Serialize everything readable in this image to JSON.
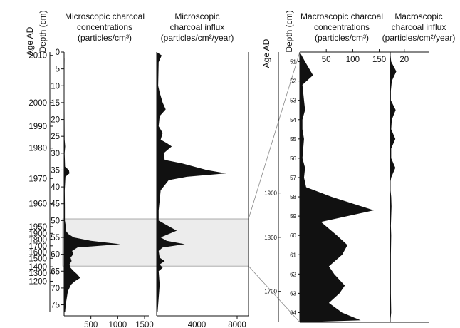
{
  "chart_data": [
    {
      "type": "area",
      "panel": "microscopic-concentration",
      "title_lines": [
        "Microscopic charcoal",
        "concentrations",
        "(particles/cm³)"
      ],
      "xlim": [
        0,
        1500
      ],
      "xticks": [
        "500",
        "1000",
        "1500"
      ],
      "depth_ylim": [
        0,
        77
      ],
      "depth_ticks": [
        "0",
        "5",
        "10",
        "15",
        "20",
        "25",
        "30",
        "35",
        "40",
        "45",
        "50",
        "55",
        "60",
        "65",
        "70",
        "75"
      ],
      "age_labels": [
        {
          "label": "2010",
          "depth": 1
        },
        {
          "label": "2000",
          "depth": 15
        },
        {
          "label": "1990",
          "depth": 22
        },
        {
          "label": "1980",
          "depth": 28.5
        },
        {
          "label": "1970",
          "depth": 37.5
        },
        {
          "label": "1960",
          "depth": 45
        },
        {
          "label": "1950",
          "depth": 51.8
        },
        {
          "label": "1900",
          "depth": 53.8
        },
        {
          "label": "1800",
          "depth": 55.6
        },
        {
          "label": "1700",
          "depth": 57.5
        },
        {
          "label": "1600",
          "depth": 59.3
        },
        {
          "label": "1500",
          "depth": 61.2
        },
        {
          "label": "1400",
          "depth": 63.7
        },
        {
          "label": "1300",
          "depth": 65.6
        },
        {
          "label": "1200",
          "depth": 68.0
        }
      ],
      "profile": [
        [
          0,
          0
        ],
        [
          2,
          8
        ],
        [
          8,
          5
        ],
        [
          14,
          6
        ],
        [
          20,
          8
        ],
        [
          26,
          10
        ],
        [
          28,
          20
        ],
        [
          30,
          10
        ],
        [
          34,
          18
        ],
        [
          35,
          90
        ],
        [
          36,
          100
        ],
        [
          37,
          25
        ],
        [
          41,
          12
        ],
        [
          46,
          15
        ],
        [
          50,
          15
        ],
        [
          52,
          35
        ],
        [
          53,
          30
        ],
        [
          54,
          80
        ],
        [
          55,
          180
        ],
        [
          56,
          500
        ],
        [
          57,
          1050
        ],
        [
          58,
          250
        ],
        [
          59,
          150
        ],
        [
          60,
          170
        ],
        [
          61,
          120
        ],
        [
          62,
          140
        ],
        [
          63,
          100
        ],
        [
          64,
          120
        ],
        [
          65,
          180
        ],
        [
          66,
          250
        ],
        [
          67,
          300
        ],
        [
          68,
          200
        ],
        [
          69,
          130
        ],
        [
          71,
          70
        ],
        [
          73,
          50
        ],
        [
          75,
          30
        ],
        [
          77,
          20
        ]
      ],
      "highlight_depth": [
        49.5,
        63.5
      ]
    },
    {
      "type": "area",
      "panel": "microscopic-influx",
      "title_lines": [
        "Microscopic",
        "charcoal influx",
        "(particles/cm²/year)"
      ],
      "xlim": [
        0,
        8000
      ],
      "xticks": [
        "4000",
        "8000"
      ],
      "profile": [
        [
          0,
          0
        ],
        [
          1,
          500
        ],
        [
          3,
          200
        ],
        [
          10,
          150
        ],
        [
          12,
          300
        ],
        [
          15,
          600
        ],
        [
          17,
          900
        ],
        [
          19,
          300
        ],
        [
          22,
          200
        ],
        [
          24,
          600
        ],
        [
          26,
          400
        ],
        [
          27,
          1000
        ],
        [
          28,
          1500
        ],
        [
          30,
          700
        ],
        [
          32,
          800
        ],
        [
          33,
          2500
        ],
        [
          35,
          5000
        ],
        [
          36,
          6900
        ],
        [
          37,
          3000
        ],
        [
          38,
          1200
        ],
        [
          41,
          400
        ],
        [
          44,
          300
        ],
        [
          47,
          200
        ],
        [
          50,
          200
        ],
        [
          51,
          800
        ],
        [
          52,
          1400
        ],
        [
          53,
          2000
        ],
        [
          54,
          1200
        ],
        [
          55,
          400
        ],
        [
          56,
          1000
        ],
        [
          57,
          2800
        ],
        [
          58,
          600
        ],
        [
          59,
          200
        ],
        [
          61,
          300
        ],
        [
          62,
          800
        ],
        [
          63,
          300
        ],
        [
          64,
          600
        ],
        [
          65,
          200
        ],
        [
          69,
          300
        ],
        [
          77,
          100
        ]
      ]
    },
    {
      "type": "area",
      "panel": "macroscopic-concentration",
      "title_lines": [
        "Macroscopic charcoal",
        "concentrations",
        "(particles/cm³)"
      ],
      "xlim": [
        0,
        160
      ],
      "xticks": [
        "50",
        "100",
        "150"
      ],
      "depth_ylim": [
        50.5,
        64.5
      ],
      "depth_ticks": [
        "51",
        "52",
        "53",
        "54",
        "55",
        "56",
        "57",
        "58",
        "59",
        "60",
        "61",
        "62",
        "63",
        "64"
      ],
      "age_labels": [
        {
          "label": "1900",
          "depth": 57.8
        },
        {
          "label": "1800",
          "depth": 60.1
        },
        {
          "label": "1700",
          "depth": 62.9
        }
      ],
      "profile": [
        [
          50.5,
          0
        ],
        [
          51,
          10
        ],
        [
          51.7,
          25
        ],
        [
          52.2,
          5
        ],
        [
          53,
          8
        ],
        [
          53.5,
          10
        ],
        [
          54,
          5
        ],
        [
          54.5,
          5
        ],
        [
          55,
          8
        ],
        [
          56,
          5
        ],
        [
          56.5,
          10
        ],
        [
          57,
          8
        ],
        [
          57.5,
          12
        ],
        [
          58,
          60
        ],
        [
          58.7,
          140
        ],
        [
          59.3,
          40
        ],
        [
          60,
          70
        ],
        [
          60.5,
          90
        ],
        [
          61,
          80
        ],
        [
          61.6,
          55
        ],
        [
          62,
          65
        ],
        [
          62.6,
          85
        ],
        [
          63,
          75
        ],
        [
          63.5,
          55
        ],
        [
          64,
          80
        ],
        [
          64.4,
          115
        ],
        [
          64.5,
          0
        ]
      ]
    },
    {
      "type": "area",
      "panel": "macroscopic-influx",
      "title_lines": [
        "Macroscopic",
        "charcoal influx",
        "(particles/cm²/year)"
      ],
      "xlim": [
        0,
        20
      ],
      "xticks": [
        "20"
      ],
      "profile": [
        [
          50.5,
          0
        ],
        [
          51,
          3
        ],
        [
          51.5,
          19
        ],
        [
          52,
          5
        ],
        [
          52.5,
          2
        ],
        [
          53,
          2
        ],
        [
          53.5,
          17
        ],
        [
          54,
          5
        ],
        [
          54.5,
          3
        ],
        [
          55,
          16
        ],
        [
          55.5,
          3
        ],
        [
          56,
          3
        ],
        [
          56.5,
          16
        ],
        [
          57,
          3
        ],
        [
          57.3,
          0
        ],
        [
          57.5,
          0
        ],
        [
          58,
          3
        ],
        [
          58.5,
          4
        ],
        [
          59,
          3
        ],
        [
          59.5,
          2
        ],
        [
          60,
          3
        ],
        [
          61,
          2
        ],
        [
          62,
          2
        ],
        [
          63,
          2
        ],
        [
          64,
          3
        ],
        [
          64.5,
          0
        ]
      ]
    }
  ],
  "axis_labels": {
    "age": "Age AD",
    "depth": "Depth (cm)"
  },
  "colors": {
    "fill": "#111111",
    "highlight": "#ececec",
    "connector": "#888888"
  }
}
